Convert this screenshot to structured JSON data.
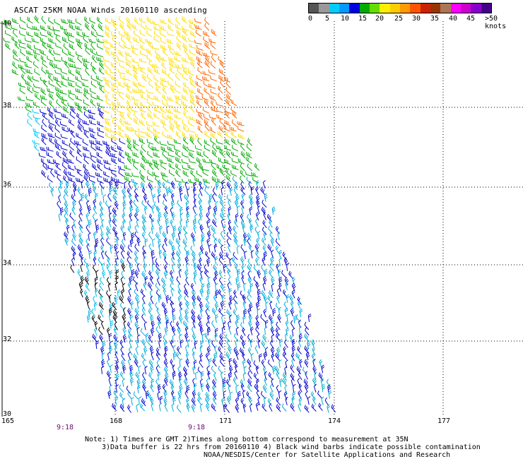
{
  "title": "ASCAT 25KM NOAA Winds 20160110 ascending",
  "scale": {
    "colors": [
      "#555555",
      "#999999",
      "#00ccff",
      "#0099ff",
      "#0000dd",
      "#00aa00",
      "#66dd00",
      "#ffee00",
      "#ffcc00",
      "#ff9900",
      "#ff5500",
      "#cc2200",
      "#993300",
      "#aa7755",
      "#ff00ff",
      "#cc00cc",
      "#8800cc",
      "#440088"
    ],
    "tick_labels": [
      "0",
      "5",
      "10",
      "15",
      "20",
      "25",
      "30",
      "35",
      "40",
      "45",
      ">50 knots"
    ]
  },
  "latitudes": [
    "40",
    "38",
    "36",
    "34",
    "32",
    "30"
  ],
  "longitudes": [
    "165",
    "168",
    "171",
    "174",
    "177"
  ],
  "times": [
    "9:18",
    "9:18"
  ],
  "notes": [
    "Note: 1) Times are GMT 2)Times along bottom correspond to measurement at 35N",
    "3)Data buffer is 22 hrs from 20160110 4) Black wind barbs indicate possible contamination",
    "NOAA/NESDIS/Center for Satellite Applications and Research"
  ]
}
